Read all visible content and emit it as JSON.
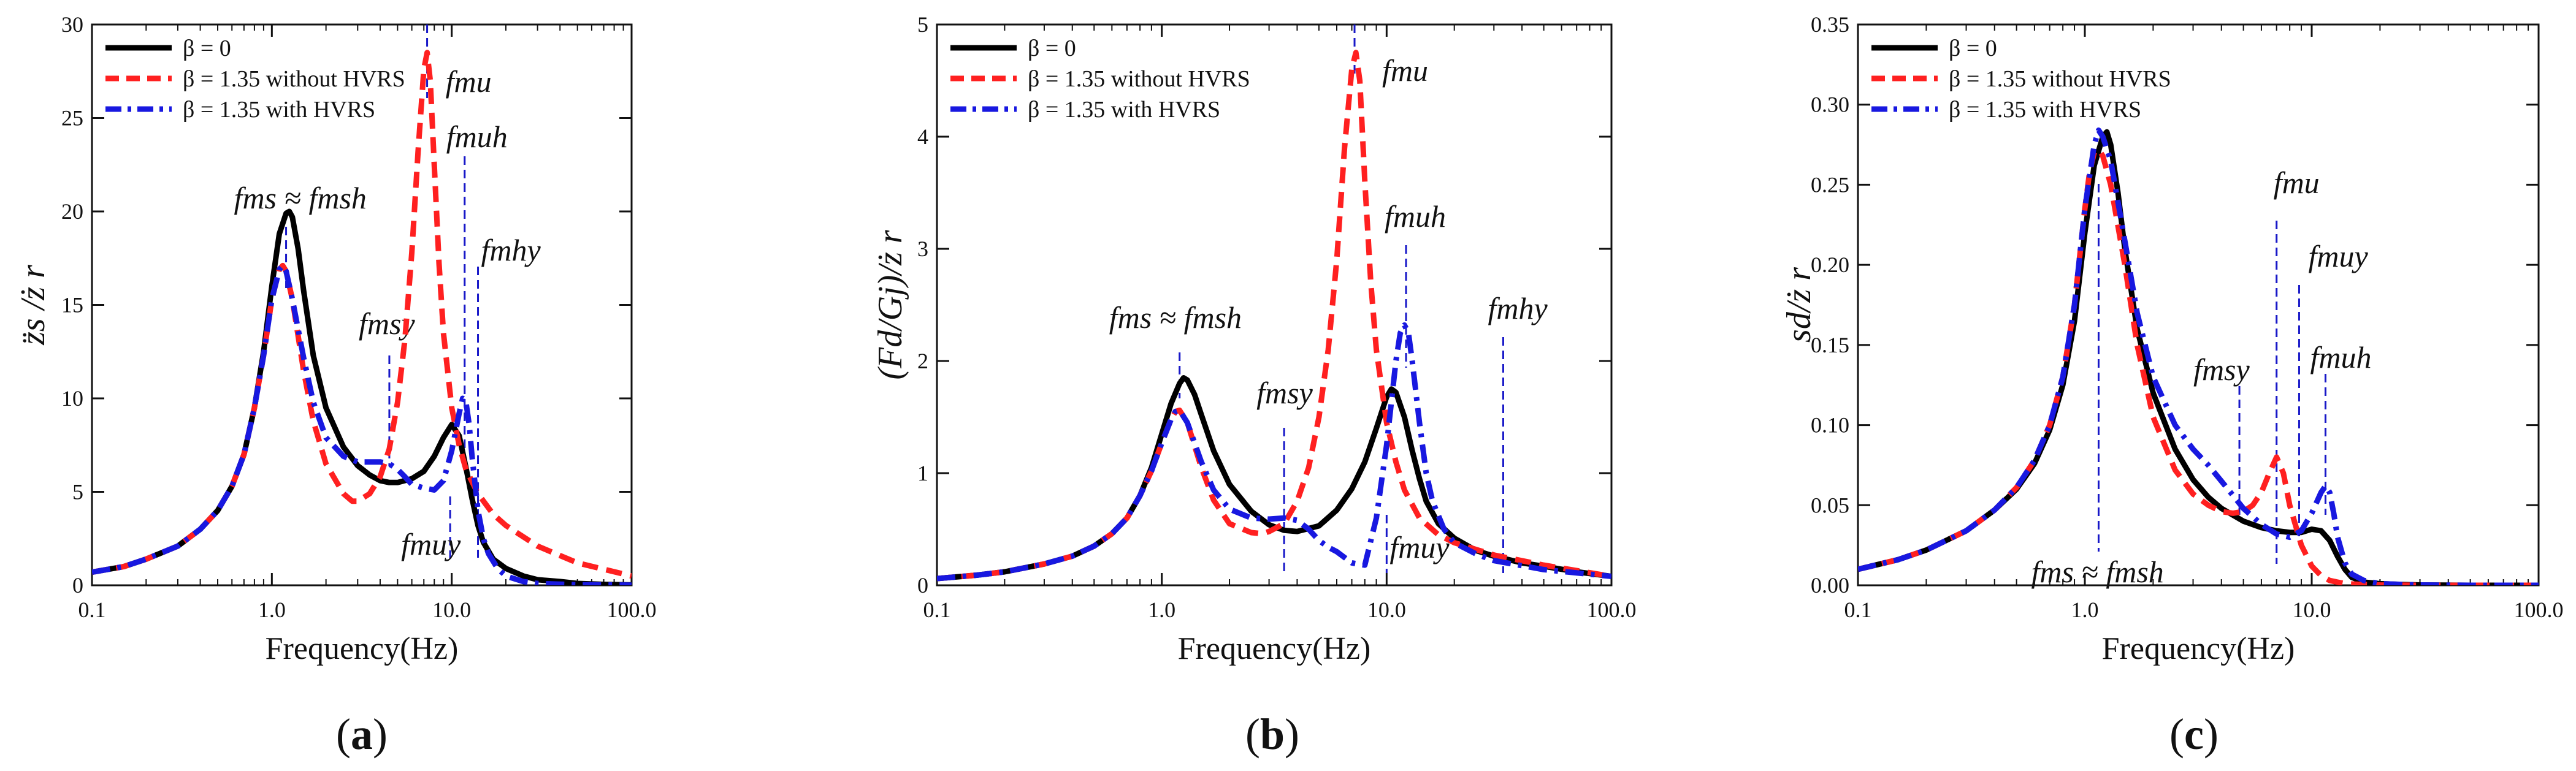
{
  "colors": {
    "beta0": "#000000",
    "without": "#ff2020",
    "with": "#1818e0",
    "marker": "#1818c8",
    "axis": "#111111"
  },
  "chart_data": [
    {
      "id": "a",
      "type": "line",
      "panel_label": "(a)",
      "panel_letter": "a",
      "xlabel": "Frequency(Hz)",
      "ylabel": "z̈s /ż r",
      "x_scale": "log",
      "xlim": [
        0.1,
        100
      ],
      "ylim": [
        0,
        30
      ],
      "xticks": [
        0.1,
        1,
        10,
        100
      ],
      "xtick_labels": [
        "0.1",
        "1.0",
        "10.0",
        "100.0"
      ],
      "yticks": [
        0,
        5,
        10,
        15,
        20,
        25,
        30
      ],
      "ytick_labels": [
        "0",
        "5",
        "10",
        "15",
        "20",
        "25",
        "30"
      ],
      "legend": {
        "position": "top-left",
        "entries": [
          "β = 0",
          "β = 1.35 without HVRS",
          "β = 1.35 with HVRS"
        ]
      },
      "series": [
        {
          "name": "β = 0",
          "style": "solid",
          "x": [
            0.1,
            0.15,
            0.2,
            0.3,
            0.4,
            0.5,
            0.6,
            0.7,
            0.8,
            0.9,
            1.0,
            1.1,
            1.2,
            1.25,
            1.3,
            1.4,
            1.5,
            1.7,
            2.0,
            2.5,
            3.0,
            3.5,
            4.0,
            4.5,
            5.0,
            6.0,
            7.0,
            8.0,
            9.0,
            10.0,
            11.0,
            12.0,
            13.0,
            14.0,
            15.0,
            17.0,
            20.0,
            25.0,
            30.0,
            40.0,
            50.0,
            70.0,
            100.0
          ],
          "values": [
            0.7,
            1.0,
            1.4,
            2.1,
            3.0,
            4.0,
            5.3,
            7.0,
            9.5,
            12.5,
            16.0,
            18.8,
            19.9,
            20.0,
            19.7,
            18.0,
            15.8,
            12.3,
            9.5,
            7.4,
            6.4,
            5.9,
            5.6,
            5.5,
            5.5,
            5.7,
            6.1,
            6.9,
            7.9,
            8.6,
            8.0,
            6.3,
            4.6,
            3.2,
            2.3,
            1.4,
            0.9,
            0.5,
            0.3,
            0.2,
            0.1,
            0.05,
            0.02
          ]
        },
        {
          "name": "β = 1.35 without HVRS",
          "style": "dashed",
          "x": [
            0.1,
            0.15,
            0.2,
            0.3,
            0.4,
            0.5,
            0.6,
            0.7,
            0.8,
            0.9,
            1.0,
            1.1,
            1.15,
            1.2,
            1.3,
            1.5,
            1.7,
            2.0,
            2.5,
            2.8,
            3.0,
            3.5,
            4.0,
            4.5,
            5.0,
            5.5,
            6.0,
            6.5,
            7.0,
            7.3,
            7.6,
            8.0,
            8.5,
            9.0,
            10.0,
            11.0,
            12.0,
            14.0,
            17.0,
            20.0,
            30.0,
            50.0,
            100.0
          ],
          "values": [
            0.7,
            1.0,
            1.4,
            2.1,
            3.0,
            4.0,
            5.3,
            7.0,
            9.5,
            12.3,
            15.3,
            16.9,
            17.1,
            16.8,
            15.3,
            11.5,
            8.8,
            6.5,
            4.9,
            4.5,
            4.5,
            4.9,
            5.8,
            7.3,
            9.8,
            13.2,
            17.8,
            23.2,
            27.6,
            28.5,
            27.0,
            22.5,
            17.2,
            13.5,
            9.5,
            7.5,
            6.2,
            4.9,
            3.8,
            3.2,
            2.1,
            1.2,
            0.5
          ]
        },
        {
          "name": "β = 1.35 with HVRS",
          "style": "dashdot",
          "x": [
            0.1,
            0.15,
            0.2,
            0.3,
            0.4,
            0.5,
            0.6,
            0.7,
            0.8,
            0.9,
            1.0,
            1.1,
            1.15,
            1.2,
            1.3,
            1.5,
            1.7,
            2.0,
            2.5,
            3.0,
            3.5,
            4.0,
            4.5,
            5.0,
            5.5,
            6.0,
            7.0,
            8.0,
            9.0,
            10.0,
            11.0,
            11.5,
            12.0,
            12.5,
            13.0,
            14.0,
            15.0,
            16.0,
            18.0,
            20.0,
            25.0,
            30.0,
            50.0,
            100.0
          ],
          "values": [
            0.7,
            1.0,
            1.4,
            2.1,
            3.0,
            4.0,
            5.3,
            7.0,
            9.5,
            12.3,
            15.3,
            16.9,
            17.1,
            16.8,
            15.3,
            12.2,
            9.8,
            7.9,
            6.9,
            6.6,
            6.6,
            6.6,
            6.5,
            6.2,
            5.8,
            5.4,
            5.2,
            5.1,
            5.6,
            7.2,
            9.2,
            10.0,
            9.8,
            8.6,
            6.8,
            4.0,
            2.5,
            1.7,
            0.9,
            0.5,
            0.2,
            0.1,
            0.03,
            0.01
          ]
        }
      ],
      "annotations": [
        {
          "name": "fms-fmsh",
          "label": "fms ≈ fmsh",
          "x": 1.2
        },
        {
          "name": "fmsy",
          "label": "fmsy",
          "x": 4.5
        },
        {
          "name": "fmu",
          "label": "fmu",
          "x": 7.3
        },
        {
          "name": "fmuh",
          "label": "fmuh",
          "x": 11.8
        },
        {
          "name": "fmhy",
          "label": "fmhy",
          "x": 14.0
        },
        {
          "name": "fmuy",
          "label": "fmuy",
          "x": 9.8
        }
      ]
    },
    {
      "id": "b",
      "type": "line",
      "panel_label": "(b)",
      "panel_letter": "b",
      "xlabel": "Frequency(Hz)",
      "ylabel": "(Fd/Gj)/ż r",
      "x_scale": "log",
      "xlim": [
        0.1,
        100
      ],
      "ylim": [
        0,
        5
      ],
      "xticks": [
        0.1,
        1,
        10,
        100
      ],
      "xtick_labels": [
        "0.1",
        "1.0",
        "10.0",
        "100.0"
      ],
      "yticks": [
        0,
        1,
        2,
        3,
        4,
        5
      ],
      "ytick_labels": [
        "0",
        "1",
        "2",
        "3",
        "4",
        "5"
      ],
      "legend": {
        "position": "top-left",
        "entries": [
          "β = 0",
          "β = 1.35 without HVRS",
          "β = 1.35 with HVRS"
        ]
      },
      "series": [
        {
          "name": "β = 0",
          "style": "solid",
          "x": [
            0.1,
            0.15,
            0.2,
            0.3,
            0.4,
            0.5,
            0.6,
            0.7,
            0.8,
            0.9,
            1.0,
            1.1,
            1.2,
            1.25,
            1.3,
            1.4,
            1.5,
            1.7,
            2.0,
            2.5,
            3.0,
            3.5,
            4.0,
            5.0,
            6.0,
            7.0,
            8.0,
            9.0,
            10.0,
            10.5,
            11.0,
            12.0,
            13.0,
            14.0,
            15.0,
            17.0,
            20.0,
            25.0,
            30.0,
            40.0,
            50.0,
            70.0,
            100.0
          ],
          "values": [
            0.06,
            0.09,
            0.12,
            0.19,
            0.26,
            0.35,
            0.46,
            0.6,
            0.8,
            1.05,
            1.35,
            1.62,
            1.8,
            1.85,
            1.83,
            1.7,
            1.52,
            1.2,
            0.9,
            0.66,
            0.54,
            0.49,
            0.48,
            0.53,
            0.67,
            0.86,
            1.1,
            1.4,
            1.68,
            1.75,
            1.72,
            1.5,
            1.2,
            0.95,
            0.75,
            0.55,
            0.42,
            0.31,
            0.26,
            0.2,
            0.17,
            0.12,
            0.08
          ]
        },
        {
          "name": "β = 1.35 without HVRS",
          "style": "dashed",
          "x": [
            0.1,
            0.15,
            0.2,
            0.3,
            0.4,
            0.5,
            0.6,
            0.7,
            0.8,
            0.9,
            1.0,
            1.1,
            1.15,
            1.2,
            1.3,
            1.5,
            1.7,
            2.0,
            2.5,
            2.8,
            3.0,
            3.5,
            4.0,
            4.5,
            5.0,
            5.5,
            6.0,
            6.5,
            7.0,
            7.3,
            7.6,
            8.0,
            8.5,
            9.0,
            10.0,
            11.0,
            12.0,
            14.0,
            17.0,
            20.0,
            30.0,
            50.0,
            100.0
          ],
          "values": [
            0.06,
            0.09,
            0.12,
            0.19,
            0.26,
            0.35,
            0.46,
            0.6,
            0.8,
            1.02,
            1.27,
            1.48,
            1.55,
            1.56,
            1.45,
            1.05,
            0.76,
            0.55,
            0.47,
            0.46,
            0.48,
            0.55,
            0.75,
            1.05,
            1.5,
            2.1,
            2.9,
            3.9,
            4.6,
            4.75,
            4.5,
            3.6,
            2.7,
            2.1,
            1.45,
            1.1,
            0.85,
            0.6,
            0.45,
            0.38,
            0.27,
            0.18,
            0.08
          ]
        },
        {
          "name": "β = 1.35 with HVRS",
          "style": "dashdot",
          "x": [
            0.1,
            0.15,
            0.2,
            0.3,
            0.4,
            0.5,
            0.6,
            0.7,
            0.8,
            0.9,
            1.0,
            1.1,
            1.15,
            1.2,
            1.3,
            1.5,
            1.7,
            2.0,
            2.5,
            3.0,
            3.5,
            4.0,
            4.5,
            5.0,
            5.5,
            6.0,
            7.0,
            8.0,
            9.0,
            10.0,
            11.0,
            11.5,
            12.0,
            12.5,
            13.0,
            14.0,
            15.0,
            16.0,
            18.0,
            20.0,
            25.0,
            30.0,
            50.0,
            100.0
          ],
          "values": [
            0.06,
            0.09,
            0.12,
            0.19,
            0.26,
            0.35,
            0.46,
            0.6,
            0.8,
            1.02,
            1.27,
            1.48,
            1.55,
            1.56,
            1.45,
            1.1,
            0.85,
            0.68,
            0.6,
            0.59,
            0.6,
            0.58,
            0.5,
            0.4,
            0.34,
            0.3,
            0.2,
            0.18,
            0.6,
            1.25,
            2.0,
            2.25,
            2.32,
            2.25,
            2.0,
            1.45,
            1.0,
            0.75,
            0.5,
            0.38,
            0.28,
            0.22,
            0.14,
            0.08
          ]
        }
      ],
      "annotations": [
        {
          "name": "fms-fmsh",
          "label": "fms ≈ fmsh",
          "x": 1.2
        },
        {
          "name": "fmsy",
          "label": "fmsy",
          "x": 3.5
        },
        {
          "name": "fmu",
          "label": "fmu",
          "x": 7.2
        },
        {
          "name": "fmuh",
          "label": "fmuh",
          "x": 12.2
        },
        {
          "name": "fmhy",
          "label": "fmhy",
          "x": 33.0
        },
        {
          "name": "fmuy",
          "label": "fmuy",
          "x": 10.0
        }
      ]
    },
    {
      "id": "c",
      "type": "line",
      "panel_label": "(c)",
      "panel_letter": "c",
      "xlabel": "Frequency(Hz)",
      "ylabel": "sd/ż r",
      "x_scale": "log",
      "xlim": [
        0.1,
        100
      ],
      "ylim": [
        0,
        0.35
      ],
      "xticks": [
        0.1,
        1,
        10,
        100
      ],
      "xtick_labels": [
        "0.1",
        "1.0",
        "10.0",
        "100.0"
      ],
      "yticks": [
        0,
        0.05,
        0.1,
        0.15,
        0.2,
        0.25,
        0.3,
        0.35
      ],
      "ytick_labels": [
        "0.00",
        "0.05",
        "0.10",
        "0.15",
        "0.20",
        "0.25",
        "0.30",
        "0.35"
      ],
      "legend": {
        "position": "top-left",
        "entries": [
          "β = 0",
          "β = 1.35 without HVRS",
          "β = 1.35 with HVRS"
        ]
      },
      "series": [
        {
          "name": "β = 0",
          "style": "solid",
          "x": [
            0.1,
            0.15,
            0.2,
            0.3,
            0.4,
            0.5,
            0.6,
            0.7,
            0.8,
            0.9,
            1.0,
            1.1,
            1.2,
            1.25,
            1.3,
            1.4,
            1.5,
            1.7,
            2.0,
            2.5,
            3.0,
            3.5,
            4.0,
            5.0,
            6.0,
            7.0,
            8.0,
            9.0,
            10.0,
            11.0,
            12.0,
            13.0,
            14.0,
            15.0,
            17.0,
            20.0,
            25.0,
            30.0,
            50.0,
            100.0
          ],
          "values": [
            0.01,
            0.016,
            0.022,
            0.034,
            0.047,
            0.06,
            0.076,
            0.097,
            0.125,
            0.165,
            0.22,
            0.262,
            0.28,
            0.283,
            0.275,
            0.245,
            0.21,
            0.16,
            0.12,
            0.085,
            0.066,
            0.055,
            0.048,
            0.04,
            0.036,
            0.034,
            0.033,
            0.033,
            0.035,
            0.034,
            0.028,
            0.018,
            0.01,
            0.005,
            0.002,
            0.001,
            0.0005,
            0.0002,
            0.0,
            0.0
          ]
        },
        {
          "name": "β = 1.35 without HVRS",
          "style": "dashed",
          "x": [
            0.1,
            0.15,
            0.2,
            0.3,
            0.4,
            0.5,
            0.6,
            0.7,
            0.8,
            0.9,
            1.0,
            1.05,
            1.1,
            1.15,
            1.2,
            1.3,
            1.5,
            1.7,
            2.0,
            2.5,
            3.0,
            3.5,
            4.0,
            4.5,
            5.0,
            5.5,
            6.0,
            6.5,
            7.0,
            7.5,
            8.0,
            9.0,
            10.0,
            11.0,
            12.0,
            14.0,
            17.0,
            20.0,
            30.0,
            50.0,
            100.0
          ],
          "values": [
            0.01,
            0.016,
            0.022,
            0.034,
            0.047,
            0.061,
            0.078,
            0.1,
            0.13,
            0.175,
            0.235,
            0.258,
            0.27,
            0.272,
            0.268,
            0.25,
            0.2,
            0.15,
            0.105,
            0.072,
            0.057,
            0.05,
            0.046,
            0.045,
            0.046,
            0.05,
            0.058,
            0.07,
            0.08,
            0.07,
            0.05,
            0.025,
            0.012,
            0.006,
            0.003,
            0.001,
            0.0005,
            0.0002,
            0.0,
            0.0,
            0.0
          ]
        },
        {
          "name": "β = 1.35 with HVRS",
          "style": "dashdot",
          "x": [
            0.1,
            0.15,
            0.2,
            0.3,
            0.4,
            0.5,
            0.6,
            0.7,
            0.8,
            0.9,
            1.0,
            1.1,
            1.15,
            1.2,
            1.3,
            1.5,
            1.7,
            2.0,
            2.5,
            3.0,
            3.5,
            4.0,
            5.0,
            6.0,
            7.0,
            8.0,
            9.0,
            10.0,
            11.0,
            11.5,
            12.0,
            12.5,
            13.0,
            14.0,
            15.0,
            17.0,
            20.0,
            30.0,
            50.0,
            100.0
          ],
          "values": [
            0.01,
            0.016,
            0.022,
            0.034,
            0.047,
            0.061,
            0.078,
            0.1,
            0.13,
            0.175,
            0.235,
            0.275,
            0.284,
            0.28,
            0.265,
            0.215,
            0.17,
            0.13,
            0.1,
            0.085,
            0.075,
            0.065,
            0.048,
            0.038,
            0.032,
            0.03,
            0.034,
            0.045,
            0.058,
            0.062,
            0.058,
            0.045,
            0.03,
            0.014,
            0.007,
            0.003,
            0.001,
            0.0002,
            0.0,
            0.0
          ]
        }
      ],
      "annotations": [
        {
          "name": "fms-fmsh",
          "label": "fms ≈ fmsh",
          "x": 1.15
        },
        {
          "name": "fmsy",
          "label": "fmsy",
          "x": 4.8
        },
        {
          "name": "fmu",
          "label": "fmu",
          "x": 7.0
        },
        {
          "name": "fmuy",
          "label": "fmuy",
          "x": 8.8
        },
        {
          "name": "fmuh",
          "label": "fmuh",
          "x": 11.5
        }
      ]
    }
  ]
}
